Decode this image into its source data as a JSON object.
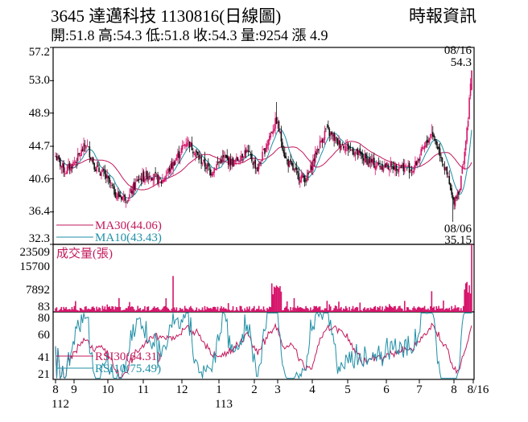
{
  "header": {
    "title": "3645  達邁科技 1130816(日線圖)",
    "source": "時報資訊",
    "ohlc": "開:51.8 高:54.3 低:51.8 收:54.3 量:9254 漲 4.9"
  },
  "colors": {
    "up": "#d6156b",
    "down": "#111111",
    "ma30": "#c2185b",
    "ma10": "#1f8fa6",
    "rsi30": "#c2185b",
    "rsi10": "#1f8fa6",
    "volume": "#d6156b"
  },
  "chart_data": [
    {
      "type": "candlestick",
      "y_ticks": [
        "57.2",
        "53.0",
        "48.9",
        "44.7",
        "40.6",
        "36.4",
        "32.3"
      ],
      "ylim": [
        32.3,
        57.2
      ],
      "series": [
        {
          "name": "MA30(44.06)"
        },
        {
          "name": "MA10(43.43)"
        }
      ],
      "annotations": [
        {
          "date": "08/16",
          "price": "54.3"
        },
        {
          "date": "08/06",
          "price": "35.15"
        }
      ]
    },
    {
      "type": "bar",
      "label": "成交量(張)",
      "y_ticks": [
        "23509",
        "15700",
        "7892",
        "83"
      ],
      "ylim": [
        83,
        23509
      ]
    },
    {
      "type": "line",
      "series": [
        {
          "name": "RSI30(64.31)"
        },
        {
          "name": "RSI10(75.49)"
        }
      ],
      "y_ticks": [
        "80",
        "60",
        "41",
        "21"
      ],
      "ylim": [
        21,
        80
      ]
    }
  ],
  "x_axis": {
    "ticks": [
      "8",
      "9",
      "10",
      "11",
      "12",
      "1",
      "2",
      "3",
      "4",
      "5",
      "6",
      "7",
      "8",
      "8/16"
    ],
    "year_labels": [
      "112",
      "113"
    ]
  }
}
